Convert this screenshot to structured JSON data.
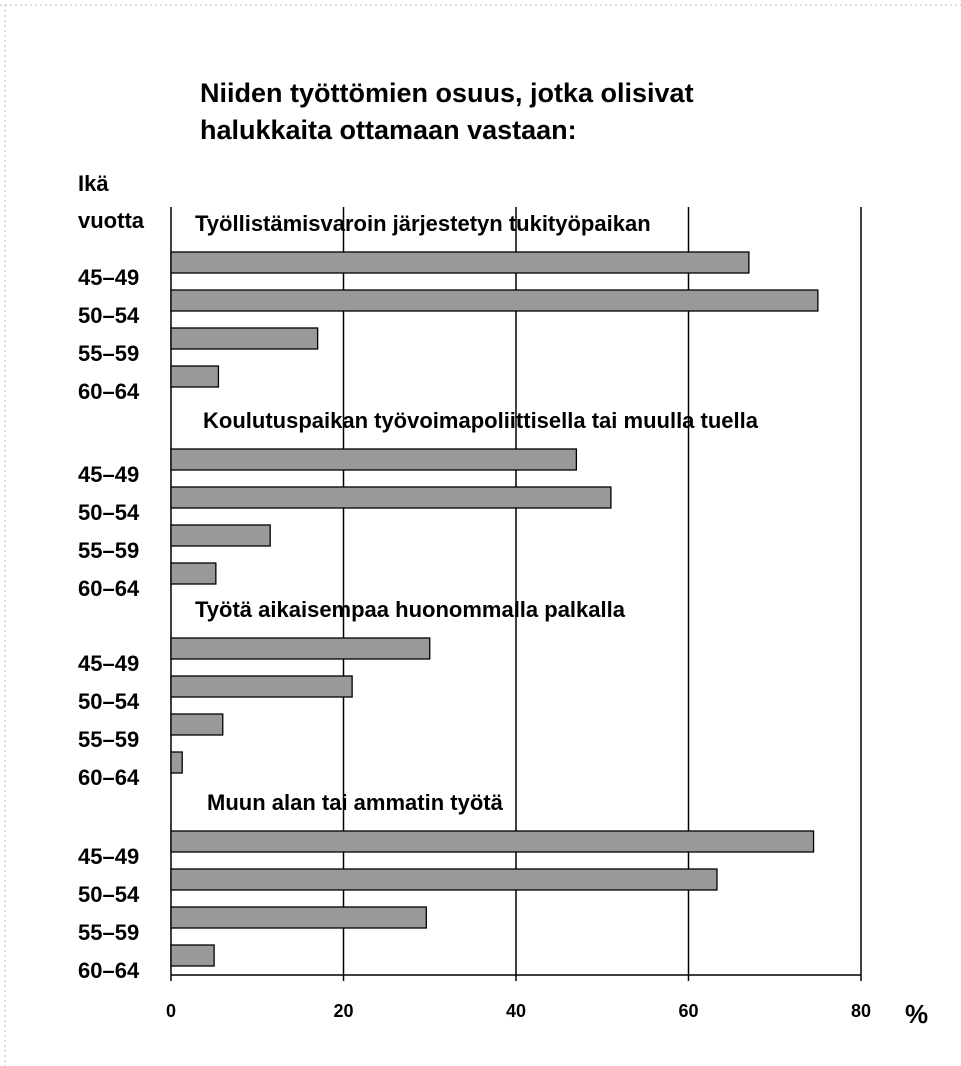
{
  "chart_data": {
    "type": "bar",
    "title": [
      "Niiden työttömien osuus, jotka olisivat",
      "halukkaita ottamaan vastaan:"
    ],
    "ylabel": [
      "Ikä",
      "vuotta"
    ],
    "xlabel": "%",
    "color": "#999999",
    "xlim": [
      0,
      80
    ],
    "xticks": [
      0,
      20,
      40,
      60,
      80
    ],
    "grid": true,
    "groups": [
      {
        "name": "Työllistämisvaroin järjestetyn tukityöpaikan",
        "categories": [
          "45–49",
          "50–54",
          "55–59",
          "60–64"
        ],
        "values": [
          67,
          75,
          17,
          5.5
        ]
      },
      {
        "name": "Koulutuspaikan työvoimapoliittisella tai muulla tuella",
        "categories": [
          "45–49",
          "50–54",
          "55–59",
          "60–64"
        ],
        "values": [
          47,
          51,
          11.5,
          5.2
        ]
      },
      {
        "name": "Työtä aikaisempaa huonommalla palkalla",
        "categories": [
          "45–49",
          "50–54",
          "55–59",
          "60–64"
        ],
        "values": [
          30,
          21,
          6,
          1.3
        ]
      },
      {
        "name": "Muun alan tai ammatin työtä",
        "categories": [
          "45–49",
          "50–54",
          "55–59",
          "60–64"
        ],
        "values": [
          74.5,
          63.3,
          29.6,
          5
        ]
      }
    ]
  }
}
